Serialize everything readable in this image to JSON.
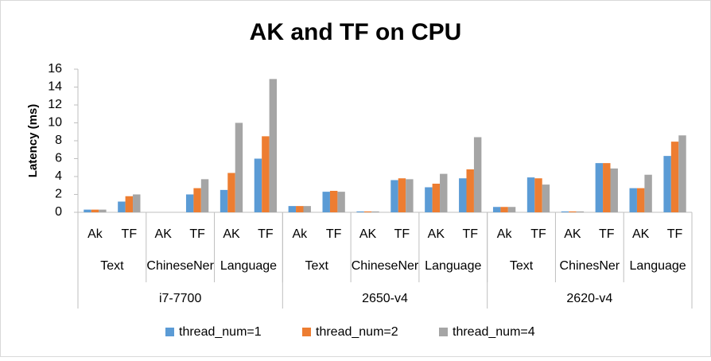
{
  "chart_data": {
    "type": "bar",
    "title": "AK and TF on CPU",
    "y_label": "Latency (ms)",
    "categories": [
      "Ak",
      "TF",
      "AK",
      "TF",
      "AK",
      "TF",
      "Ak",
      "TF",
      "AK",
      "TF",
      "AK",
      "TF",
      "Ak",
      "TF",
      "AK",
      "TF",
      "AK",
      "TF"
    ],
    "subgroups": [
      "Text",
      "ChineseNer",
      "Language",
      "Text",
      "ChineseNer",
      "Language",
      "Text",
      "ChinesNer",
      "Language"
    ],
    "groups": [
      "i7-7700",
      "2650-v4",
      "2620-v4"
    ],
    "series": [
      {
        "name": "thread_num=1",
        "color": "#5b9bd5",
        "values": [
          0.3,
          1.2,
          0,
          2.0,
          2.5,
          6.0,
          0.7,
          2.3,
          0.1,
          3.6,
          2.8,
          3.8,
          0.6,
          3.9,
          0.1,
          5.5,
          2.7,
          6.3
        ]
      },
      {
        "name": "thread_num=2",
        "color": "#ed7d31",
        "values": [
          0.3,
          1.8,
          0,
          2.7,
          4.4,
          8.5,
          0.7,
          2.4,
          0.1,
          3.8,
          3.2,
          4.8,
          0.6,
          3.8,
          0.1,
          5.5,
          2.7,
          7.9
        ]
      },
      {
        "name": "thread_num=4",
        "color": "#a5a5a5",
        "values": [
          0.3,
          2.0,
          0,
          3.7,
          10.0,
          14.9,
          0.7,
          2.3,
          0.1,
          3.7,
          4.3,
          8.4,
          0.6,
          3.1,
          0.1,
          4.9,
          4.2,
          8.6
        ]
      }
    ],
    "ylim": [
      0,
      16
    ],
    "yticks": [
      0,
      2,
      4,
      6,
      8,
      10,
      12,
      14,
      16
    ],
    "grid": false,
    "legend": "bottom"
  }
}
